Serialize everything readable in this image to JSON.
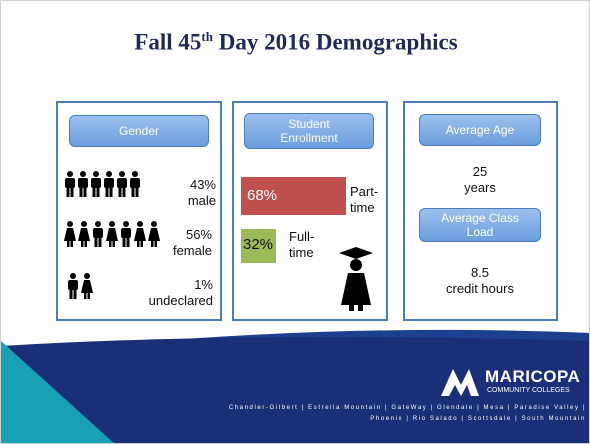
{
  "title": {
    "pre": "Fall 45",
    "sup": "th",
    "post": " Day 2016 Demographics"
  },
  "gender": {
    "header": "Gender",
    "items": [
      {
        "pct": "43%",
        "label": "male"
      },
      {
        "pct": "56%",
        "label": "female"
      },
      {
        "pct": "1%",
        "label": "undeclared"
      }
    ]
  },
  "enrollment": {
    "header": "Student Enrollment",
    "items": [
      {
        "pct": "68%",
        "label": "Part-time"
      },
      {
        "pct": "32%",
        "label": "Full-time"
      }
    ]
  },
  "age": {
    "header": "Average Age",
    "value": "25",
    "unit": "years"
  },
  "load": {
    "header": "Average Class Load",
    "value": "8.5",
    "unit": "credit hours"
  },
  "footer": {
    "logo": "MARICOPA",
    "logo_sub": "COMMUNITY COLLEGES",
    "campuses_1": "Chandler-Gilbert | Estrella Mountain | GateWay | Glendale | Mesa | Paradise Valley |",
    "campuses_2": "Phoenix | Rio Salado | Scottsdale | South Mountain"
  }
}
